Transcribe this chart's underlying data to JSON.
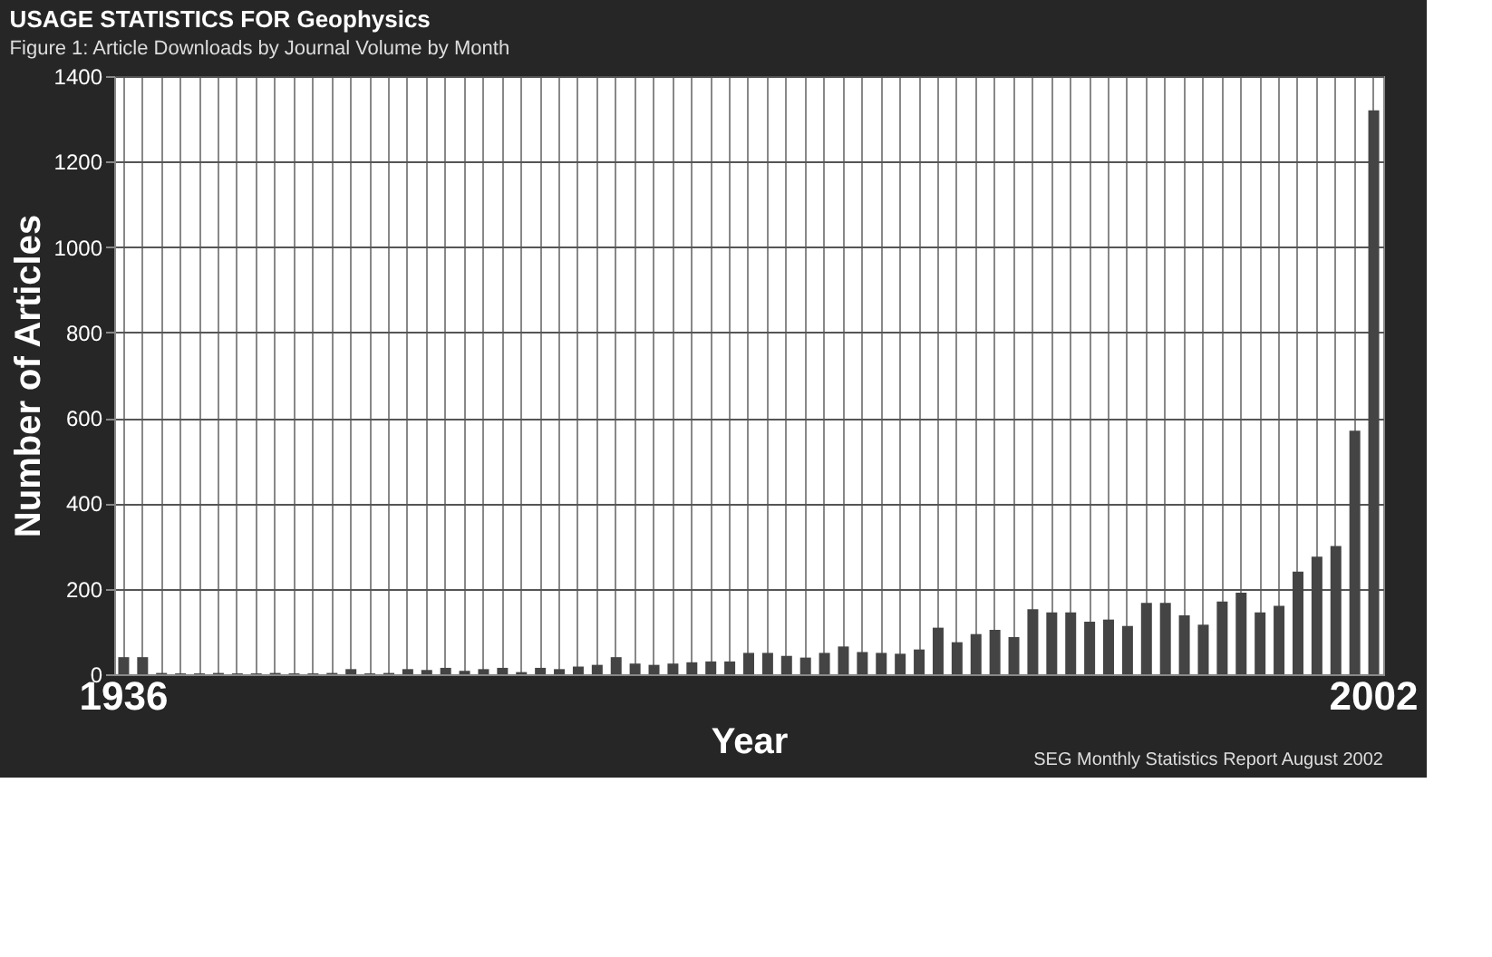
{
  "chart_data": {
    "type": "bar",
    "title": "USAGE STATISTICS FOR Geophysics",
    "subtitle": "Figure 1: Article Downloads by Journal Volume by Month",
    "xlabel": "Year",
    "ylabel": "Number of Articles",
    "annotations": [
      "SEG Monthly Statistics Report August 2002"
    ],
    "categories": [
      "1936",
      null,
      null,
      null,
      null,
      null,
      null,
      null,
      null,
      null,
      null,
      null,
      null,
      null,
      null,
      null,
      null,
      null,
      null,
      null,
      null,
      null,
      null,
      null,
      null,
      null,
      null,
      null,
      null,
      null,
      null,
      null,
      null,
      null,
      null,
      null,
      null,
      null,
      null,
      null,
      null,
      null,
      null,
      null,
      null,
      null,
      null,
      null,
      null,
      null,
      null,
      null,
      null,
      null,
      null,
      null,
      null,
      null,
      null,
      null,
      null,
      null,
      null,
      null,
      null,
      null,
      "2002"
    ],
    "values": [
      40,
      40,
      3,
      2,
      2,
      3,
      2,
      2,
      3,
      2,
      2,
      3,
      12,
      2,
      3,
      12,
      10,
      15,
      8,
      12,
      15,
      5,
      15,
      12,
      18,
      22,
      40,
      25,
      22,
      25,
      28,
      30,
      30,
      50,
      50,
      43,
      39,
      50,
      65,
      52,
      50,
      48,
      58,
      109,
      75,
      94,
      104,
      87,
      152,
      145,
      145,
      123,
      128,
      113,
      167,
      167,
      138,
      116,
      170,
      191,
      145,
      160,
      240,
      275,
      300,
      570,
      1320
    ],
    "color": "#444444",
    "ylim": [
      0,
      1400
    ],
    "yticks": [
      0,
      200,
      400,
      600,
      800,
      1000,
      1200,
      1400
    ],
    "grid": true
  }
}
